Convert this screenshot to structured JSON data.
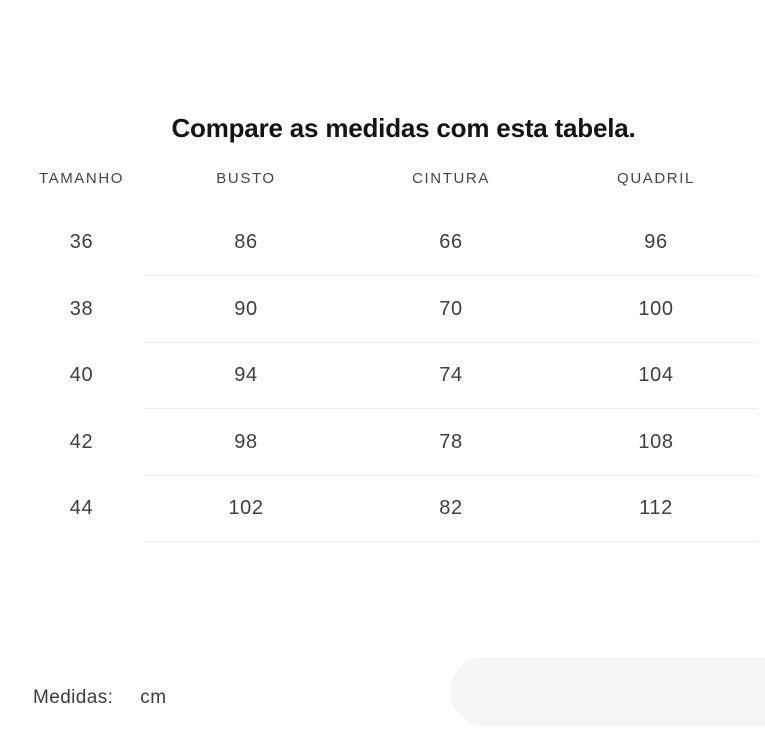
{
  "page": {
    "title": "Compare as medidas com esta tabela."
  },
  "size_table": {
    "columns": [
      "TAMANHO",
      "BUSTO",
      "CINTURA",
      "QUADRIL"
    ],
    "rows": [
      [
        "36",
        "86",
        "66",
        "96"
      ],
      [
        "38",
        "90",
        "70",
        "100"
      ],
      [
        "40",
        "94",
        "74",
        "104"
      ],
      [
        "42",
        "98",
        "78",
        "108"
      ],
      [
        "44",
        "102",
        "82",
        "112"
      ]
    ]
  },
  "footer": {
    "label": "Medidas:",
    "unit": "cm"
  },
  "colors": {
    "background": "#ffffff",
    "title_text": "#141414",
    "header_text": "#42464a",
    "value_text": "#3e3e3e",
    "divider": "#f0f0f0",
    "placeholder_pill": "#f6f6f6"
  }
}
